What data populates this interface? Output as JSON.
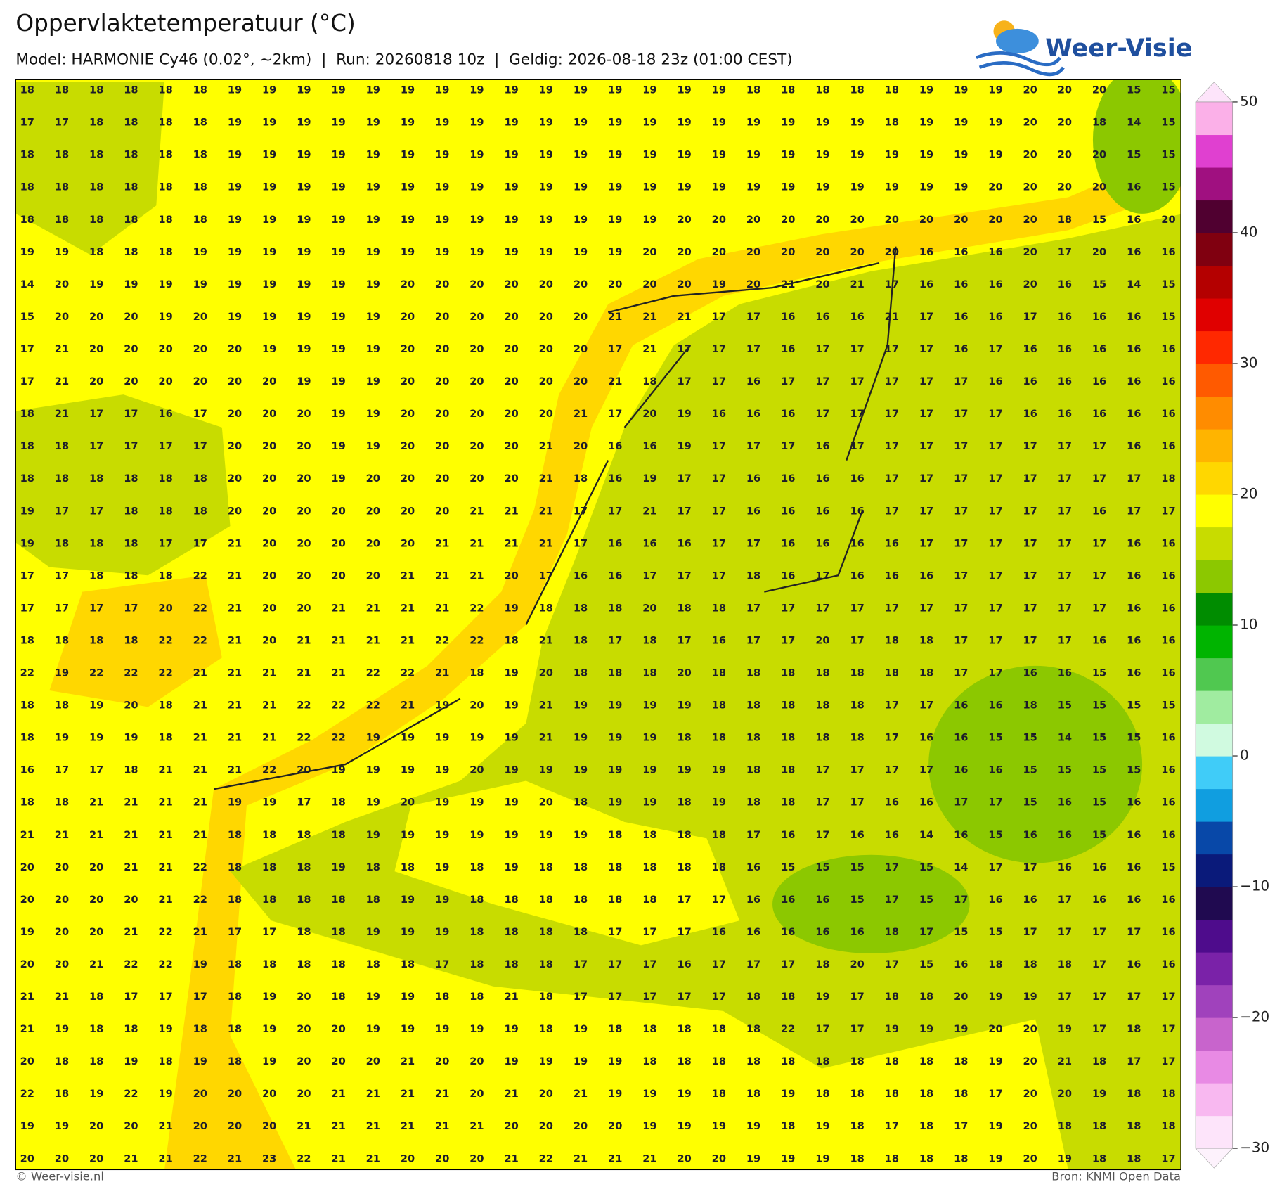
{
  "header": {
    "title": "Oppervlaktetemperatuur (°C)",
    "subtitle": "Model: HARMONIE Cy46 (0.02°, ~2km)  |  Run: 20260818 10z  |  Geldig: 2026-08-18 23z (01:00 CEST)"
  },
  "logo": {
    "text": "Weer-Visie"
  },
  "footer": {
    "left": "© Weer-visie.nl",
    "right": "Bron: KNMI Open Data"
  },
  "colorbar": {
    "ticks": [
      50,
      40,
      30,
      20,
      10,
      0,
      {
        "value": -10,
        "label": "−10"
      },
      {
        "value": -20,
        "label": "−20"
      },
      {
        "value": -30,
        "label": "−30"
      }
    ],
    "colors": [
      "#fde4fa",
      "#f8b8f0",
      "#e88ae4",
      "#c864cc",
      "#a042bc",
      "#7a22a8",
      "#4e0c8c",
      "#200a50",
      "#0a1a7a",
      "#0848a8",
      "#109ee0",
      "#40ccf8",
      "#d0fae0",
      "#a0eca0",
      "#50c850",
      "#00b400",
      "#008c00",
      "#8cc800",
      "#c8dc00",
      "#ffff00",
      "#ffd700",
      "#ffb400",
      "#ff8c00",
      "#ff5a00",
      "#ff2800",
      "#e00000",
      "#b40000",
      "#800010",
      "#500030",
      "#a01080",
      "#e040d0",
      "#fbb0e8"
    ]
  },
  "grid": {
    "rows": [
      [
        18,
        18,
        18,
        18,
        18,
        18,
        19,
        19,
        19,
        19,
        19,
        19,
        19,
        19,
        19,
        19,
        19,
        19,
        19,
        19,
        19,
        18,
        18,
        18,
        18,
        18,
        19,
        19,
        19,
        20,
        20,
        20,
        15,
        15
      ],
      [
        17,
        17,
        18,
        18,
        18,
        18,
        19,
        19,
        19,
        19,
        19,
        19,
        19,
        19,
        19,
        19,
        19,
        19,
        19,
        19,
        19,
        19,
        19,
        19,
        19,
        18,
        19,
        19,
        19,
        20,
        20,
        18,
        14,
        15
      ],
      [
        18,
        18,
        18,
        18,
        18,
        18,
        19,
        19,
        19,
        19,
        19,
        19,
        19,
        19,
        19,
        19,
        19,
        19,
        19,
        19,
        19,
        19,
        19,
        19,
        19,
        19,
        19,
        19,
        19,
        20,
        20,
        20,
        15,
        15
      ],
      [
        18,
        18,
        18,
        18,
        18,
        18,
        19,
        19,
        19,
        19,
        19,
        19,
        19,
        19,
        19,
        19,
        19,
        19,
        19,
        19,
        19,
        19,
        19,
        19,
        19,
        19,
        19,
        19,
        20,
        20,
        20,
        20,
        16,
        15
      ],
      [
        18,
        18,
        18,
        18,
        18,
        18,
        19,
        19,
        19,
        19,
        19,
        19,
        19,
        19,
        19,
        19,
        19,
        19,
        19,
        20,
        20,
        20,
        20,
        20,
        20,
        20,
        20,
        20,
        20,
        20,
        18,
        15,
        16,
        20
      ],
      [
        19,
        19,
        18,
        18,
        18,
        19,
        19,
        19,
        19,
        19,
        19,
        19,
        19,
        19,
        19,
        19,
        19,
        19,
        20,
        20,
        20,
        20,
        20,
        20,
        20,
        20,
        16,
        16,
        16,
        20,
        17,
        20,
        16,
        16
      ],
      [
        14,
        20,
        19,
        19,
        19,
        19,
        19,
        19,
        19,
        19,
        19,
        20,
        20,
        20,
        20,
        20,
        20,
        20,
        20,
        20,
        19,
        20,
        21,
        20,
        21,
        17,
        16,
        16,
        16,
        20,
        16,
        15,
        14,
        15
      ],
      [
        15,
        20,
        20,
        20,
        19,
        20,
        19,
        19,
        19,
        19,
        19,
        20,
        20,
        20,
        20,
        20,
        20,
        21,
        21,
        21,
        17,
        17,
        16,
        16,
        16,
        21,
        17,
        16,
        16,
        17,
        16,
        16,
        16,
        15
      ],
      [
        17,
        21,
        20,
        20,
        20,
        20,
        20,
        19,
        19,
        19,
        19,
        20,
        20,
        20,
        20,
        20,
        20,
        17,
        21,
        17,
        17,
        17,
        16,
        17,
        17,
        17,
        17,
        16,
        17,
        16,
        16,
        16,
        16,
        16
      ],
      [
        17,
        21,
        20,
        20,
        20,
        20,
        20,
        20,
        19,
        19,
        19,
        20,
        20,
        20,
        20,
        20,
        20,
        21,
        18,
        17,
        17,
        16,
        17,
        17,
        17,
        17,
        17,
        17,
        16,
        16,
        16,
        16,
        16,
        16
      ],
      [
        18,
        21,
        17,
        17,
        16,
        17,
        20,
        20,
        20,
        19,
        19,
        20,
        20,
        20,
        20,
        20,
        21,
        17,
        20,
        19,
        16,
        16,
        16,
        17,
        17,
        17,
        17,
        17,
        17,
        16,
        16,
        16,
        16,
        16
      ],
      [
        18,
        18,
        17,
        17,
        17,
        17,
        20,
        20,
        20,
        19,
        19,
        20,
        20,
        20,
        20,
        21,
        20,
        16,
        16,
        19,
        17,
        17,
        17,
        16,
        17,
        17,
        17,
        17,
        17,
        17,
        17,
        17,
        16,
        16
      ],
      [
        18,
        18,
        18,
        18,
        18,
        18,
        20,
        20,
        20,
        19,
        20,
        20,
        20,
        20,
        20,
        21,
        18,
        16,
        19,
        17,
        17,
        16,
        16,
        16,
        16,
        17,
        17,
        17,
        17,
        17,
        17,
        17,
        17,
        18
      ],
      [
        19,
        17,
        17,
        18,
        18,
        18,
        20,
        20,
        20,
        20,
        20,
        20,
        20,
        21,
        21,
        21,
        17,
        17,
        21,
        17,
        17,
        16,
        16,
        16,
        16,
        17,
        17,
        17,
        17,
        17,
        17,
        16,
        17,
        17
      ],
      [
        19,
        18,
        18,
        18,
        17,
        17,
        21,
        20,
        20,
        20,
        20,
        20,
        21,
        21,
        21,
        21,
        17,
        16,
        16,
        16,
        17,
        17,
        16,
        16,
        16,
        16,
        17,
        17,
        17,
        17,
        17,
        17,
        16,
        16
      ],
      [
        17,
        17,
        18,
        18,
        18,
        22,
        21,
        20,
        20,
        20,
        20,
        21,
        21,
        21,
        20,
        17,
        16,
        16,
        17,
        17,
        17,
        18,
        16,
        17,
        16,
        16,
        16,
        17,
        17,
        17,
        17,
        17,
        16,
        16
      ],
      [
        17,
        17,
        17,
        17,
        20,
        22,
        21,
        20,
        20,
        21,
        21,
        21,
        21,
        22,
        19,
        18,
        18,
        18,
        20,
        18,
        18,
        17,
        17,
        17,
        17,
        17,
        17,
        17,
        17,
        17,
        17,
        17,
        16,
        16
      ],
      [
        18,
        18,
        18,
        18,
        22,
        22,
        21,
        20,
        21,
        21,
        21,
        21,
        22,
        22,
        18,
        21,
        18,
        17,
        18,
        17,
        16,
        17,
        17,
        20,
        17,
        18,
        18,
        17,
        17,
        17,
        17,
        16,
        16,
        16
      ],
      [
        22,
        19,
        22,
        22,
        22,
        21,
        21,
        21,
        21,
        21,
        22,
        22,
        21,
        18,
        19,
        20,
        18,
        18,
        18,
        20,
        18,
        18,
        18,
        18,
        18,
        18,
        18,
        17,
        17,
        16,
        16,
        15,
        16,
        16
      ],
      [
        18,
        18,
        19,
        20,
        18,
        21,
        21,
        21,
        22,
        22,
        22,
        21,
        19,
        20,
        19,
        21,
        19,
        19,
        19,
        19,
        18,
        18,
        18,
        18,
        18,
        17,
        17,
        16,
        16,
        18,
        15,
        15,
        15,
        15
      ],
      [
        18,
        19,
        19,
        19,
        18,
        21,
        21,
        21,
        22,
        22,
        19,
        19,
        19,
        19,
        19,
        21,
        19,
        19,
        19,
        18,
        18,
        18,
        18,
        18,
        18,
        17,
        16,
        16,
        15,
        15,
        14,
        15,
        15,
        16
      ],
      [
        16,
        17,
        17,
        18,
        21,
        21,
        21,
        22,
        20,
        19,
        19,
        19,
        19,
        20,
        19,
        19,
        19,
        19,
        19,
        19,
        19,
        18,
        18,
        17,
        17,
        17,
        17,
        16,
        16,
        15,
        15,
        15,
        15,
        16
      ],
      [
        18,
        18,
        21,
        21,
        21,
        21,
        19,
        19,
        17,
        18,
        19,
        20,
        19,
        19,
        19,
        20,
        18,
        19,
        19,
        18,
        19,
        18,
        18,
        17,
        17,
        16,
        16,
        17,
        17,
        15,
        16,
        15,
        16,
        16
      ],
      [
        21,
        21,
        21,
        21,
        21,
        21,
        18,
        18,
        18,
        18,
        19,
        19,
        19,
        19,
        19,
        19,
        19,
        18,
        18,
        18,
        18,
        17,
        16,
        17,
        16,
        16,
        14,
        16,
        15,
        16,
        16,
        15,
        16,
        16
      ],
      [
        20,
        20,
        20,
        21,
        21,
        22,
        18,
        18,
        18,
        19,
        18,
        18,
        19,
        18,
        19,
        18,
        18,
        18,
        18,
        18,
        18,
        16,
        15,
        15,
        15,
        17,
        15,
        14,
        17,
        17,
        16,
        16,
        16,
        15
      ],
      [
        20,
        20,
        20,
        20,
        21,
        22,
        18,
        18,
        18,
        18,
        18,
        19,
        19,
        18,
        18,
        18,
        18,
        18,
        18,
        17,
        17,
        16,
        16,
        16,
        15,
        17,
        15,
        17,
        16,
        16,
        17,
        16,
        16,
        16
      ],
      [
        19,
        20,
        20,
        21,
        22,
        21,
        17,
        17,
        18,
        18,
        19,
        19,
        19,
        18,
        18,
        18,
        18,
        17,
        17,
        17,
        16,
        16,
        16,
        16,
        16,
        18,
        17,
        15,
        15,
        17,
        17,
        17,
        17,
        16
      ],
      [
        20,
        20,
        21,
        22,
        22,
        19,
        18,
        18,
        18,
        18,
        18,
        18,
        17,
        18,
        18,
        18,
        17,
        17,
        17,
        16,
        17,
        17,
        17,
        18,
        20,
        17,
        15,
        16,
        18,
        18,
        18,
        17,
        16,
        16
      ],
      [
        21,
        21,
        18,
        17,
        17,
        17,
        18,
        19,
        20,
        18,
        19,
        19,
        18,
        18,
        21,
        18,
        17,
        17,
        17,
        17,
        17,
        18,
        18,
        19,
        17,
        18,
        18,
        20,
        19,
        19,
        17,
        17,
        17,
        17
      ],
      [
        21,
        19,
        18,
        18,
        19,
        18,
        18,
        19,
        20,
        20,
        19,
        19,
        19,
        19,
        19,
        18,
        19,
        18,
        18,
        18,
        18,
        18,
        22,
        17,
        17,
        19,
        19,
        19,
        20,
        20,
        19,
        17,
        18,
        17
      ],
      [
        20,
        18,
        18,
        19,
        18,
        19,
        18,
        19,
        20,
        20,
        20,
        21,
        20,
        20,
        19,
        19,
        19,
        19,
        18,
        18,
        18,
        18,
        18,
        18,
        18,
        18,
        18,
        18,
        19,
        20,
        21,
        18,
        17,
        17
      ],
      [
        22,
        18,
        19,
        22,
        19,
        20,
        20,
        20,
        20,
        21,
        21,
        21,
        21,
        20,
        21,
        20,
        21,
        19,
        19,
        19,
        18,
        18,
        19,
        18,
        18,
        18,
        18,
        18,
        17,
        20,
        20,
        19,
        18,
        18
      ],
      [
        19,
        19,
        20,
        20,
        21,
        20,
        20,
        20,
        21,
        21,
        21,
        21,
        21,
        21,
        20,
        20,
        20,
        20,
        19,
        19,
        19,
        19,
        18,
        19,
        18,
        17,
        18,
        17,
        19,
        20,
        18,
        18,
        18,
        18
      ],
      [
        20,
        20,
        20,
        21,
        21,
        22,
        21,
        23,
        22,
        21,
        21,
        20,
        20,
        20,
        21,
        22,
        21,
        21,
        21,
        20,
        20,
        19,
        19,
        19,
        18,
        18,
        18,
        18,
        19,
        20,
        19,
        18,
        18,
        17
      ]
    ]
  }
}
